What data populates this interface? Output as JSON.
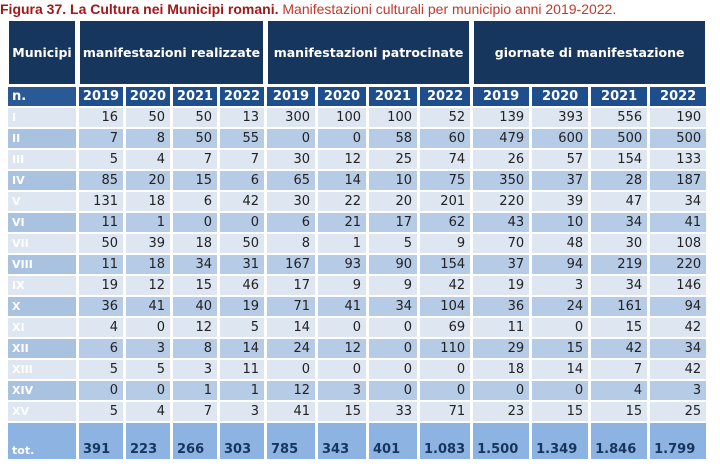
{
  "title": {
    "bold": "Figura 37.  La Cultura nei Municipi romani.",
    "rest": " Manifestazioni culturali per municipio anni 2019-2022."
  },
  "header": {
    "municipi": "Municipi",
    "groups": [
      "manifestazioni realizzate",
      "manifestazioni patrocinate",
      "giornate di manifestazione"
    ],
    "n_label": "n.",
    "years": [
      "2019",
      "2020",
      "2021",
      "2022"
    ]
  },
  "rows": [
    {
      "label": "I",
      "values": [
        "16",
        "50",
        "50",
        "13",
        "300",
        "100",
        "100",
        "52",
        "139",
        "393",
        "556",
        "190"
      ]
    },
    {
      "label": "II",
      "values": [
        "7",
        "8",
        "50",
        "55",
        "0",
        "0",
        "58",
        "60",
        "479",
        "600",
        "500",
        "500"
      ]
    },
    {
      "label": "III",
      "values": [
        "5",
        "4",
        "7",
        "7",
        "30",
        "12",
        "25",
        "74",
        "26",
        "57",
        "154",
        "133"
      ]
    },
    {
      "label": "IV",
      "values": [
        "85",
        "20",
        "15",
        "6",
        "65",
        "14",
        "10",
        "75",
        "350",
        "37",
        "28",
        "187"
      ]
    },
    {
      "label": "V",
      "values": [
        "131",
        "18",
        "6",
        "42",
        "30",
        "22",
        "20",
        "201",
        "220",
        "39",
        "47",
        "34"
      ]
    },
    {
      "label": "VI",
      "values": [
        "11",
        "1",
        "0",
        "0",
        "6",
        "21",
        "17",
        "62",
        "43",
        "10",
        "34",
        "41"
      ]
    },
    {
      "label": "VII",
      "values": [
        "50",
        "39",
        "18",
        "50",
        "8",
        "1",
        "5",
        "9",
        "70",
        "48",
        "30",
        "108"
      ]
    },
    {
      "label": "VIII",
      "values": [
        "11",
        "18",
        "34",
        "31",
        "167",
        "93",
        "90",
        "154",
        "37",
        "94",
        "219",
        "220"
      ]
    },
    {
      "label": "IX",
      "values": [
        "19",
        "12",
        "15",
        "46",
        "17",
        "9",
        "9",
        "42",
        "19",
        "3",
        "34",
        "146"
      ]
    },
    {
      "label": "X",
      "values": [
        "36",
        "41",
        "40",
        "19",
        "71",
        "41",
        "34",
        "104",
        "36",
        "24",
        "161",
        "94"
      ]
    },
    {
      "label": "XI",
      "values": [
        "4",
        "0",
        "12",
        "5",
        "14",
        "0",
        "0",
        "69",
        "11",
        "0",
        "15",
        "42"
      ]
    },
    {
      "label": "XII",
      "values": [
        "6",
        "3",
        "8",
        "14",
        "24",
        "12",
        "0",
        "110",
        "29",
        "15",
        "42",
        "34"
      ]
    },
    {
      "label": "XIII",
      "values": [
        "5",
        "5",
        "3",
        "11",
        "0",
        "0",
        "0",
        "0",
        "18",
        "14",
        "7",
        "42"
      ]
    },
    {
      "label": "XIV",
      "values": [
        "0",
        "0",
        "1",
        "1",
        "12",
        "3",
        "0",
        "0",
        "0",
        "0",
        "4",
        "3"
      ]
    },
    {
      "label": "XV",
      "values": [
        "5",
        "4",
        "7",
        "3",
        "41",
        "15",
        "33",
        "71",
        "23",
        "15",
        "15",
        "25"
      ]
    }
  ],
  "total": {
    "label": "tot.",
    "values": [
      "391",
      "223",
      "266",
      "303",
      "785",
      "343",
      "401",
      "1.083",
      "1.500",
      "1.349",
      "1.846",
      "1.799"
    ]
  },
  "colors": {
    "header": "#17365d",
    "year_row": "#1f4e8c",
    "row_light": "#dde6f1",
    "row_dark": "#b5cbe6",
    "total": "#8db3e2",
    "title": "#c0392b"
  }
}
